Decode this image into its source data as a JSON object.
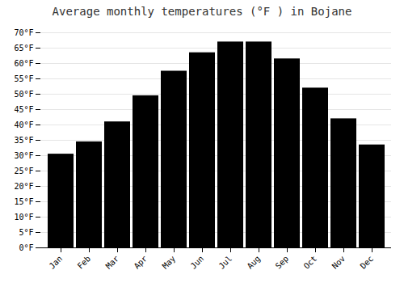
{
  "chart_data": {
    "type": "bar",
    "title": "Average monthly temperatures (°F ) in Bojane",
    "categories": [
      "Jan",
      "Feb",
      "Mar",
      "Apr",
      "May",
      "Jun",
      "Jul",
      "Aug",
      "Sep",
      "Oct",
      "Nov",
      "Dec"
    ],
    "values": [
      30.5,
      34.5,
      41.0,
      49.5,
      57.5,
      63.5,
      67.0,
      67.0,
      61.5,
      52.0,
      42.0,
      33.5
    ],
    "ylim": [
      0,
      70
    ],
    "yticks": [
      {
        "value": 0,
        "label": "0°F"
      },
      {
        "value": 5,
        "label": "5°F"
      },
      {
        "value": 10,
        "label": "10°F"
      },
      {
        "value": 15,
        "label": "15°F"
      },
      {
        "value": 20,
        "label": "20°F"
      },
      {
        "value": 25,
        "label": "25°F"
      },
      {
        "value": 30,
        "label": "30°F"
      },
      {
        "value": 35,
        "label": "35°F"
      },
      {
        "value": 40,
        "label": "40°F"
      },
      {
        "value": 45,
        "label": "45°F"
      },
      {
        "value": 50,
        "label": "50°F"
      },
      {
        "value": 55,
        "label": "55°F"
      },
      {
        "value": 60,
        "label": "60°F"
      },
      {
        "value": 65,
        "label": "65°F"
      },
      {
        "value": 70,
        "label": "70°F"
      }
    ],
    "grid": true
  }
}
